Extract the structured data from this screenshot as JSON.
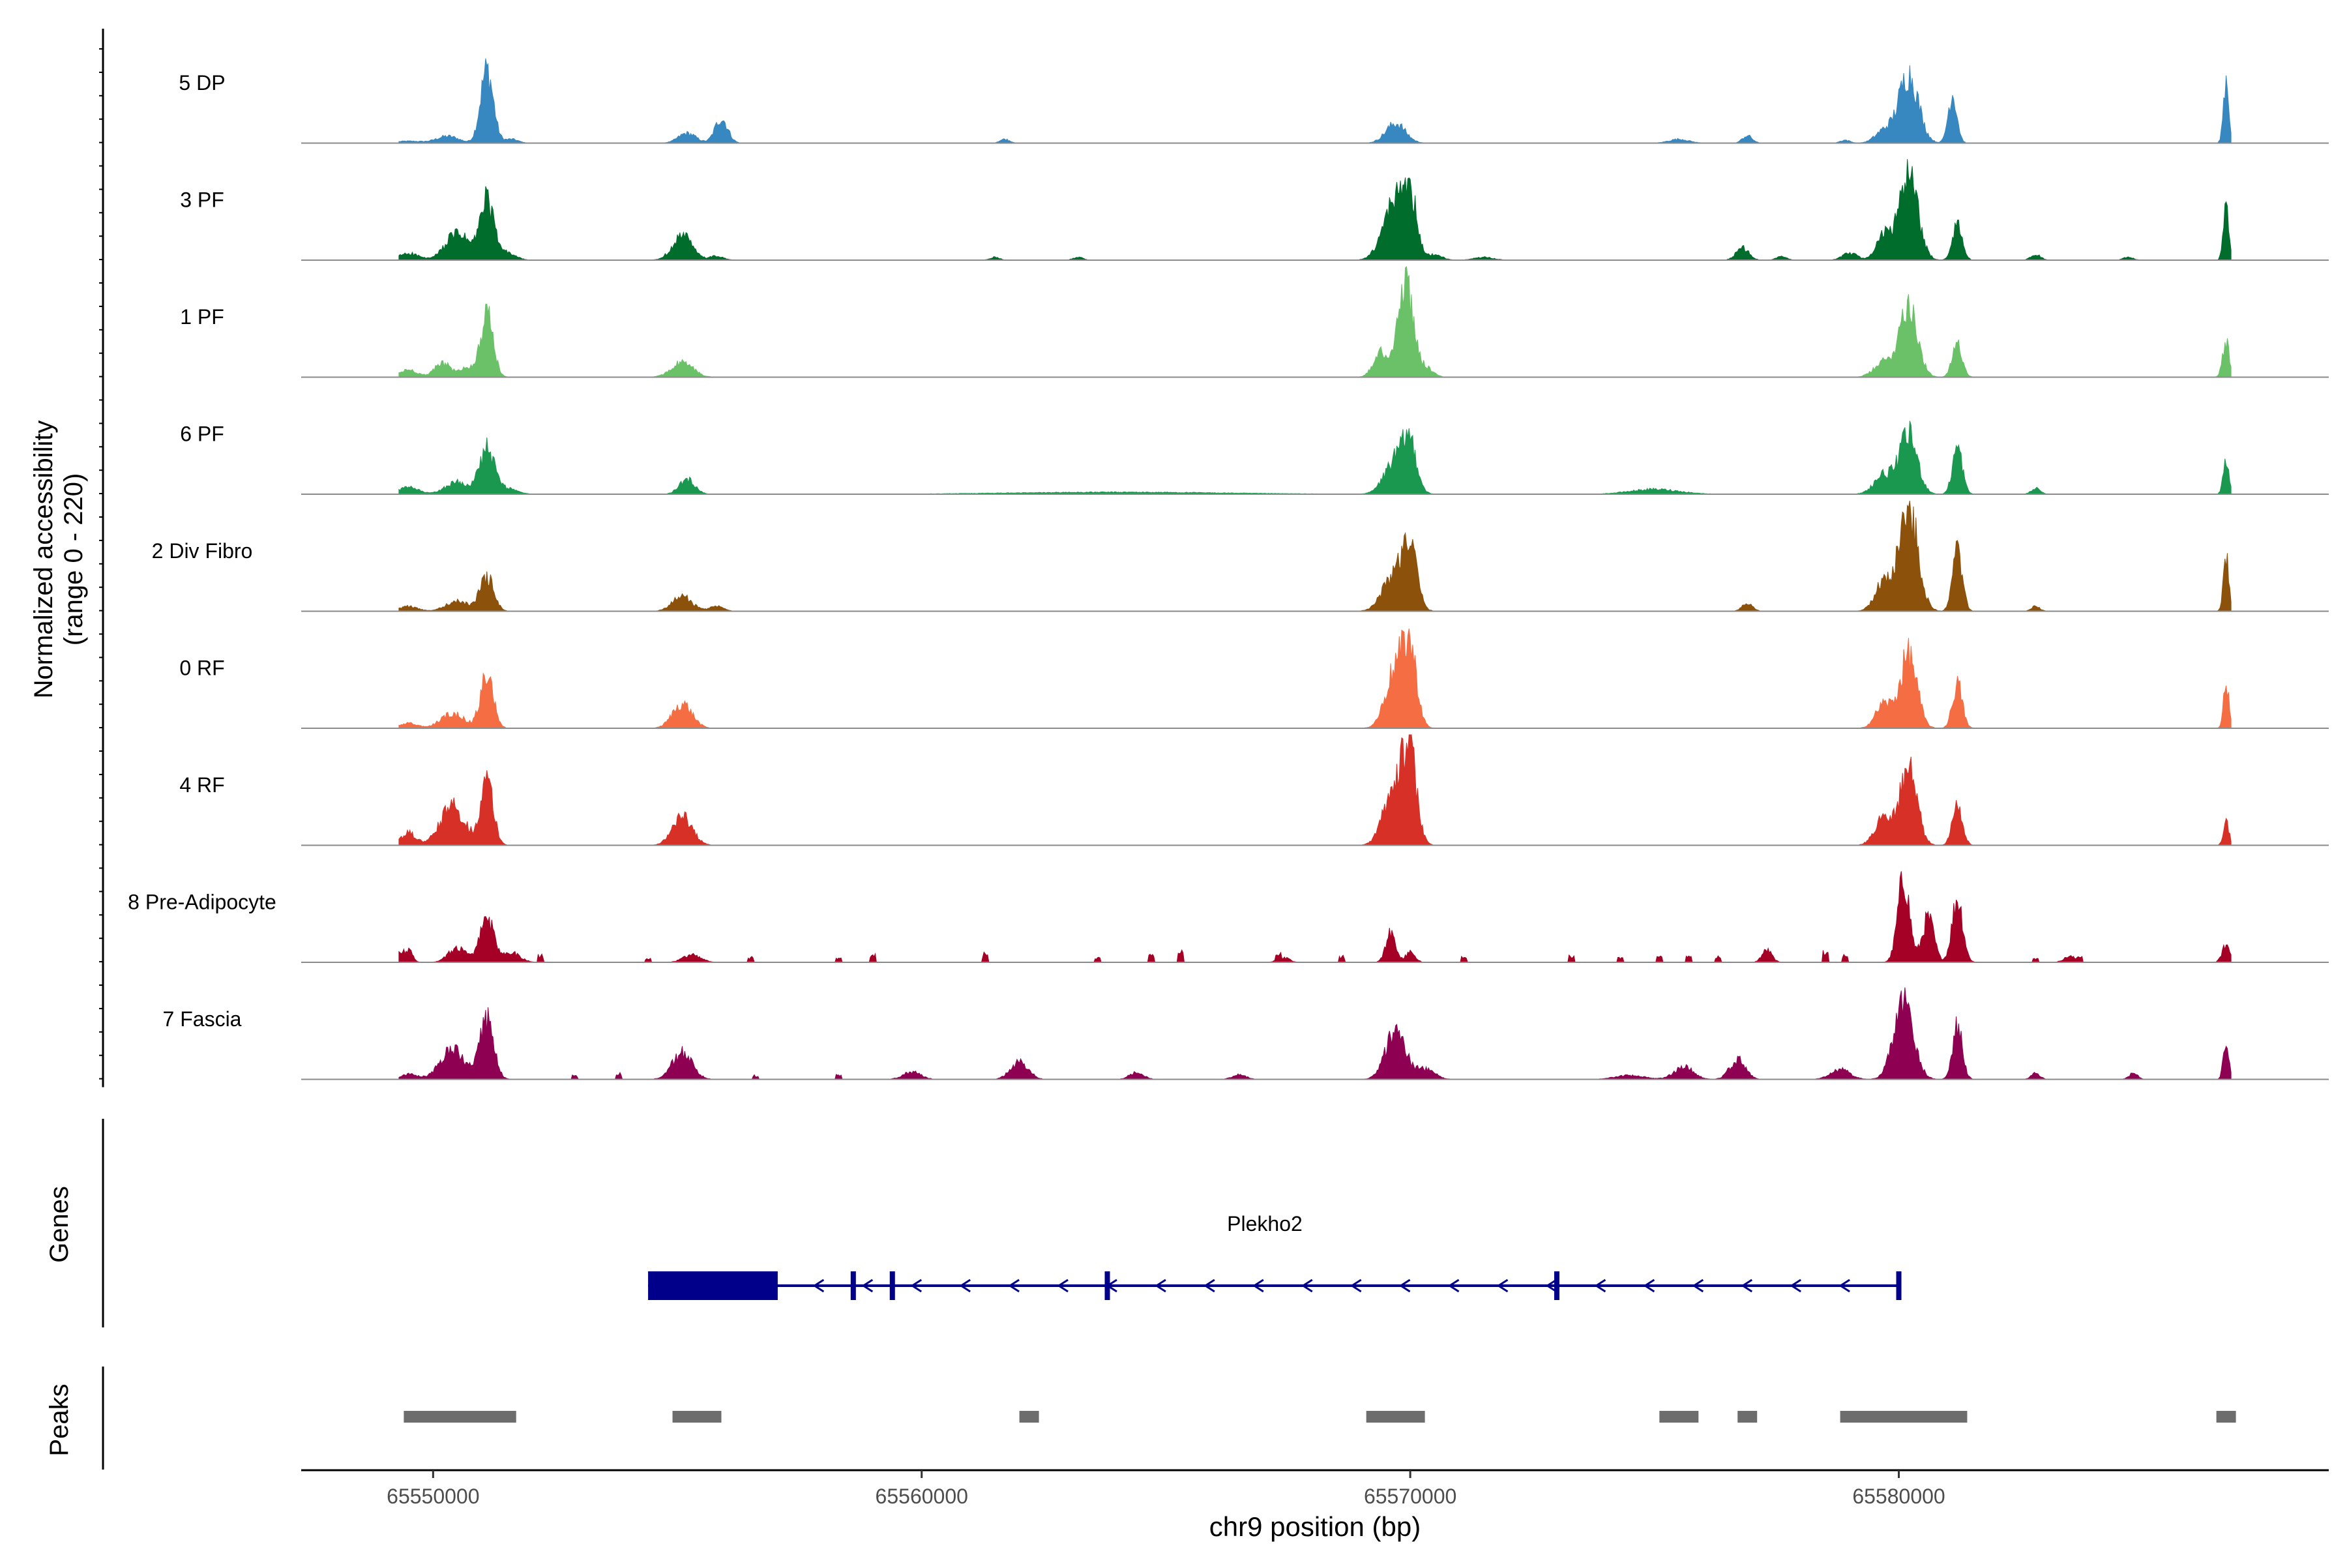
{
  "chart_data": {
    "type": "area",
    "title": "",
    "ylabel_line1": "Normalized accessibility",
    "ylabel_line2": "(range 0 - 220)",
    "y_range": [
      0,
      220
    ],
    "xlabel": "chr9 position (bp)",
    "xlim": [
      65547300,
      65588800
    ],
    "x_ticks": [
      65550000,
      65560000,
      65570000,
      65580000
    ],
    "x_tick_labels": [
      "65550000",
      "65560000",
      "65570000",
      "65580000"
    ],
    "tracks": [
      {
        "name": "5 DP",
        "color": "#3787C0",
        "peaks": [
          [
            65549500,
            4,
            300
          ],
          [
            65550300,
            14,
            220
          ],
          [
            65551100,
            150,
            130
          ],
          [
            65551600,
            8,
            140
          ],
          [
            65555200,
            20,
            180
          ],
          [
            65555900,
            50,
            130
          ],
          [
            65561700,
            8,
            100
          ],
          [
            65569700,
            40,
            200
          ],
          [
            65575500,
            8,
            200
          ],
          [
            65576900,
            15,
            100
          ],
          [
            65578900,
            6,
            100
          ],
          [
            65580200,
            140,
            200
          ],
          [
            65579700,
            25,
            180
          ],
          [
            65581100,
            100,
            90
          ],
          [
            65586700,
            130,
            55
          ]
        ]
      },
      {
        "name": "3 PF",
        "color": "#006D2C",
        "peaks": [
          [
            65549500,
            14,
            200
          ],
          [
            65550500,
            55,
            240
          ],
          [
            65551100,
            120,
            140
          ],
          [
            65551500,
            15,
            180
          ],
          [
            65555100,
            50,
            200
          ],
          [
            65555800,
            8,
            140
          ],
          [
            65561500,
            6,
            100
          ],
          [
            65563200,
            6,
            100
          ],
          [
            65569700,
            120,
            240
          ],
          [
            65570000,
            100,
            140
          ],
          [
            65570500,
            10,
            160
          ],
          [
            65571500,
            6,
            200
          ],
          [
            65576800,
            25,
            130
          ],
          [
            65577600,
            8,
            100
          ],
          [
            65579000,
            14,
            150
          ],
          [
            65580200,
            170,
            190
          ],
          [
            65579700,
            50,
            160
          ],
          [
            65581200,
            70,
            100
          ],
          [
            65582800,
            12,
            100
          ],
          [
            65584700,
            6,
            100
          ],
          [
            65586700,
            120,
            55
          ]
        ]
      },
      {
        "name": "1 PF",
        "color": "#6BC168",
        "peaks": [
          [
            65549500,
            15,
            180
          ],
          [
            65550200,
            30,
            160
          ],
          [
            65550700,
            20,
            140
          ],
          [
            65551100,
            125,
            130
          ],
          [
            65555100,
            30,
            220
          ],
          [
            65569900,
            200,
            150
          ],
          [
            65569400,
            50,
            150
          ],
          [
            65570300,
            20,
            150
          ],
          [
            65579700,
            30,
            200
          ],
          [
            65580200,
            150,
            180
          ],
          [
            65581200,
            70,
            100
          ],
          [
            65586700,
            70,
            70
          ]
        ]
      },
      {
        "name": "6 PF",
        "color": "#1A9850",
        "peaks": [
          [
            65549500,
            14,
            200
          ],
          [
            65550500,
            25,
            240
          ],
          [
            65551100,
            90,
            150
          ],
          [
            65551500,
            12,
            200
          ],
          [
            65555200,
            30,
            160
          ],
          [
            65564000,
            4,
            2200
          ],
          [
            65569700,
            70,
            220
          ],
          [
            65570000,
            90,
            140
          ],
          [
            65579700,
            40,
            200
          ],
          [
            65580200,
            120,
            180
          ],
          [
            65581200,
            95,
            100
          ],
          [
            65575000,
            10,
            500
          ],
          [
            65582800,
            12,
            90
          ],
          [
            65586700,
            70,
            60
          ]
        ]
      },
      {
        "name": "2 Div Fibro",
        "color": "#8C510A",
        "peaks": [
          [
            65549500,
            10,
            180
          ],
          [
            65550500,
            20,
            240
          ],
          [
            65551100,
            70,
            140
          ],
          [
            65555100,
            30,
            200
          ],
          [
            65555800,
            10,
            140
          ],
          [
            65569700,
            80,
            240
          ],
          [
            65570000,
            110,
            140
          ],
          [
            65576900,
            15,
            110
          ],
          [
            65580200,
            210,
            190
          ],
          [
            65579700,
            60,
            180
          ],
          [
            65581200,
            120,
            100
          ],
          [
            65582800,
            10,
            90
          ],
          [
            65586700,
            110,
            55
          ]
        ]
      },
      {
        "name": "0 RF",
        "color": "#F46D43",
        "peaks": [
          [
            65549500,
            10,
            180
          ],
          [
            65550400,
            30,
            240
          ],
          [
            65551100,
            110,
            130
          ],
          [
            65555100,
            50,
            200
          ],
          [
            65569700,
            120,
            200
          ],
          [
            65570000,
            140,
            140
          ],
          [
            65579700,
            50,
            170
          ],
          [
            65580200,
            150,
            170
          ],
          [
            65581200,
            90,
            100
          ],
          [
            65586700,
            90,
            55
          ]
        ]
      },
      {
        "name": "4 RF",
        "color": "#D73027",
        "peaks": [
          [
            65549500,
            25,
            150
          ],
          [
            65550400,
            80,
            250
          ],
          [
            65551100,
            130,
            130
          ],
          [
            65555100,
            60,
            200
          ],
          [
            65569700,
            130,
            220
          ],
          [
            65570000,
            150,
            140
          ],
          [
            65579700,
            60,
            180
          ],
          [
            65580200,
            160,
            170
          ],
          [
            65581200,
            90,
            100
          ],
          [
            65586700,
            50,
            55
          ]
        ]
      },
      {
        "name": "8 Pre-Adipocyte",
        "color": "#A50026",
        "peaks": [
          [
            65549500,
            25,
            80
          ],
          [
            65550500,
            30,
            180
          ],
          [
            65551100,
            90,
            140
          ],
          [
            65551600,
            20,
            180
          ],
          [
            65555300,
            15,
            180
          ],
          [
            65569600,
            60,
            100
          ],
          [
            65570000,
            20,
            100
          ],
          [
            65567400,
            10,
            120
          ],
          [
            65580100,
            170,
            120
          ],
          [
            65580600,
            90,
            120
          ],
          [
            65581200,
            130,
            110
          ],
          [
            65577300,
            25,
            100
          ],
          [
            65583500,
            12,
            120
          ],
          [
            65586700,
            35,
            80
          ]
        ],
        "spikes": [
          [
            65549350,
            20
          ],
          [
            65552200,
            15
          ],
          [
            65554400,
            8
          ],
          [
            65556500,
            12
          ],
          [
            65558300,
            10
          ],
          [
            65559000,
            20
          ],
          [
            65561300,
            18
          ],
          [
            65563600,
            12
          ],
          [
            65564700,
            18
          ],
          [
            65565300,
            22
          ],
          [
            65567300,
            10
          ],
          [
            65568600,
            15
          ],
          [
            65571100,
            12
          ],
          [
            65573300,
            15
          ],
          [
            65574300,
            12
          ],
          [
            65575100,
            15
          ],
          [
            65575700,
            18
          ],
          [
            65576300,
            12
          ],
          [
            65578500,
            20
          ],
          [
            65578900,
            14
          ],
          [
            65582800,
            12
          ],
          [
            65583700,
            10
          ]
        ]
      },
      {
        "name": "7 Fascia",
        "color": "#8E0152",
        "peaks": [
          [
            65549500,
            10,
            180
          ],
          [
            65550400,
            60,
            250
          ],
          [
            65551100,
            120,
            140
          ],
          [
            65555100,
            55,
            200
          ],
          [
            65559800,
            15,
            180
          ],
          [
            65562000,
            35,
            180
          ],
          [
            65564400,
            15,
            140
          ],
          [
            65566500,
            10,
            140
          ],
          [
            65569700,
            100,
            200
          ],
          [
            65570300,
            20,
            200
          ],
          [
            65574500,
            8,
            300
          ],
          [
            65575600,
            25,
            200
          ],
          [
            65576700,
            40,
            160
          ],
          [
            65578800,
            20,
            200
          ],
          [
            65580100,
            160,
            200
          ],
          [
            65581200,
            110,
            100
          ],
          [
            65582800,
            12,
            90
          ],
          [
            65584800,
            12,
            90
          ],
          [
            65586700,
            80,
            55
          ]
        ],
        "spikes": [
          [
            65552900,
            10
          ],
          [
            65553800,
            12
          ],
          [
            65556600,
            8
          ],
          [
            65558300,
            10
          ]
        ]
      }
    ],
    "genes": {
      "label": "Genes",
      "name": "Plekho2",
      "color": "#00008B",
      "strand": "-",
      "start": 65554400,
      "end": 65580000,
      "thick_block": [
        65554400,
        65557000
      ],
      "exons": [
        65557000,
        65558600,
        65559400,
        65563800,
        65573000,
        65580000
      ]
    },
    "peaks_track": {
      "label": "Peaks",
      "color": "#6D6D6D",
      "regions": [
        [
          65549400,
          65551700
        ],
        [
          65554900,
          65555900
        ],
        [
          65562000,
          65562400
        ],
        [
          65569100,
          65570300
        ],
        [
          65575100,
          65575900
        ],
        [
          65576700,
          65577100
        ],
        [
          65578800,
          65581400
        ],
        [
          65586500,
          65586900
        ]
      ]
    }
  }
}
